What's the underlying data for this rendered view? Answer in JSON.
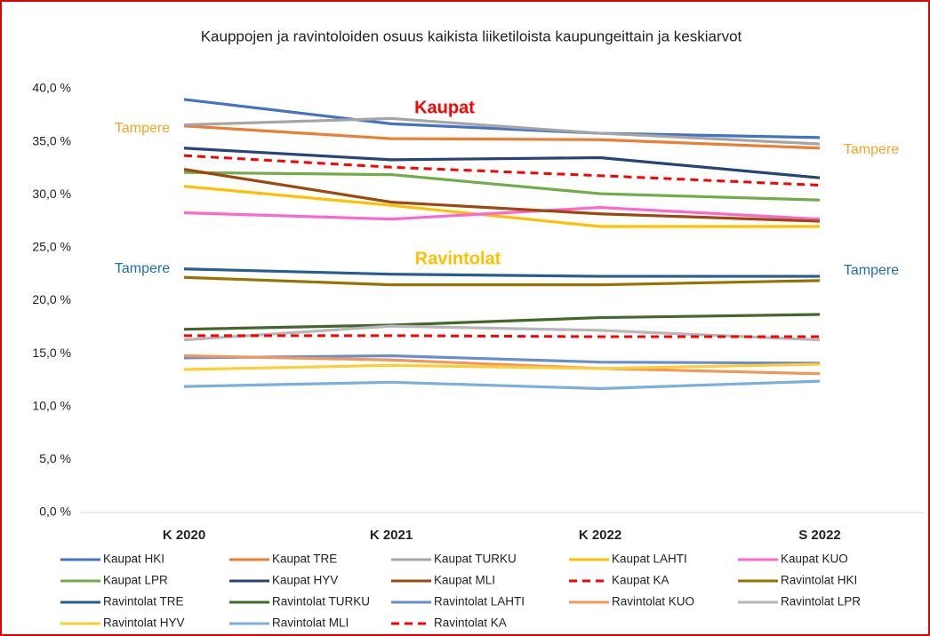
{
  "chart_data": {
    "type": "line",
    "title": "Kauppojen ja ravintoloiden osuus kaikista liiketiloista kaupungeittain ja keskiarvot",
    "categories": [
      "K 2020",
      "K 2021",
      "K 2022",
      "S 2022"
    ],
    "ylim": [
      0,
      40
    ],
    "yticks": [
      {
        "value": 0,
        "label": "0,0 %"
      },
      {
        "value": 5,
        "label": "5,0 %"
      },
      {
        "value": 10,
        "label": "10,0 %"
      },
      {
        "value": 15,
        "label": "15,0 %"
      },
      {
        "value": 20,
        "label": "20,0 %"
      },
      {
        "value": 25,
        "label": "25,0 %"
      },
      {
        "value": 30,
        "label": "30,0 %"
      },
      {
        "value": 35,
        "label": "35,0 %"
      },
      {
        "value": 40,
        "label": "40,0 %"
      }
    ],
    "annotations": [
      {
        "text": "Kaupat",
        "color": "#ff0000"
      },
      {
        "text": "Ravintolat",
        "color": "#ffc000"
      },
      {
        "text": "Tampere",
        "color": "#f5a623"
      },
      {
        "text": "Tampere",
        "color": "#f5a623"
      },
      {
        "text": "Tampere",
        "color": "#1f6fb5"
      },
      {
        "text": "Tampere",
        "color": "#1f6fb5"
      }
    ],
    "series": [
      {
        "name": "Kaupat HKI",
        "color": "#4472c4",
        "values": [
          39.0,
          36.7,
          35.8,
          35.4
        ]
      },
      {
        "name": "Kaupat TRE",
        "color": "#ed7d31",
        "values": [
          36.5,
          35.3,
          35.2,
          34.4
        ]
      },
      {
        "name": "Kaupat TURKU",
        "color": "#a5a5a5",
        "values": [
          36.6,
          37.2,
          35.8,
          34.8
        ]
      },
      {
        "name": "Kaupat LAHTI",
        "color": "#ffc000",
        "values": [
          30.8,
          29.0,
          27.0,
          27.0
        ]
      },
      {
        "name": "Kaupat KUO",
        "color": "#ff66cc",
        "values": [
          28.3,
          27.7,
          28.8,
          27.7
        ]
      },
      {
        "name": "Kaupat LPR",
        "color": "#70ad47",
        "values": [
          32.1,
          31.9,
          30.1,
          29.5
        ]
      },
      {
        "name": "Kaupat HYV",
        "color": "#264478",
        "values": [
          34.4,
          33.3,
          33.5,
          31.6
        ]
      },
      {
        "name": "Kaupat MLI",
        "color": "#9e480e",
        "values": [
          32.4,
          29.3,
          28.2,
          27.5
        ]
      },
      {
        "name": "Kaupat KA",
        "color": "#ff0000",
        "dashed": true,
        "values": [
          33.7,
          32.6,
          31.8,
          30.9
        ]
      },
      {
        "name": "Ravintolat HKI",
        "color": "#997300",
        "values": [
          22.2,
          21.5,
          21.5,
          21.9
        ]
      },
      {
        "name": "Ravintolat TRE",
        "color": "#255e91",
        "values": [
          23.0,
          22.5,
          22.3,
          22.3
        ]
      },
      {
        "name": "Ravintolat TURKU",
        "color": "#43682b",
        "values": [
          17.3,
          17.7,
          18.4,
          18.7
        ]
      },
      {
        "name": "Ravintolat LAHTI",
        "color": "#698ed0",
        "values": [
          14.6,
          14.8,
          14.2,
          14.1
        ]
      },
      {
        "name": "Ravintolat KUO",
        "color": "#f1975a",
        "values": [
          14.8,
          14.4,
          13.6,
          13.1
        ]
      },
      {
        "name": "Ravintolat LPR",
        "color": "#b7b7b7",
        "values": [
          16.3,
          17.6,
          17.2,
          16.3
        ]
      },
      {
        "name": "Ravintolat HYV",
        "color": "#ffcd33",
        "values": [
          13.5,
          13.9,
          13.6,
          14.0
        ]
      },
      {
        "name": "Ravintolat MLI",
        "color": "#7cafdd",
        "values": [
          11.9,
          12.3,
          11.7,
          12.4
        ]
      },
      {
        "name": "Ravintolat KA",
        "color": "#ff0000",
        "dashed": true,
        "values": [
          16.7,
          16.7,
          16.6,
          16.6
        ]
      }
    ]
  }
}
